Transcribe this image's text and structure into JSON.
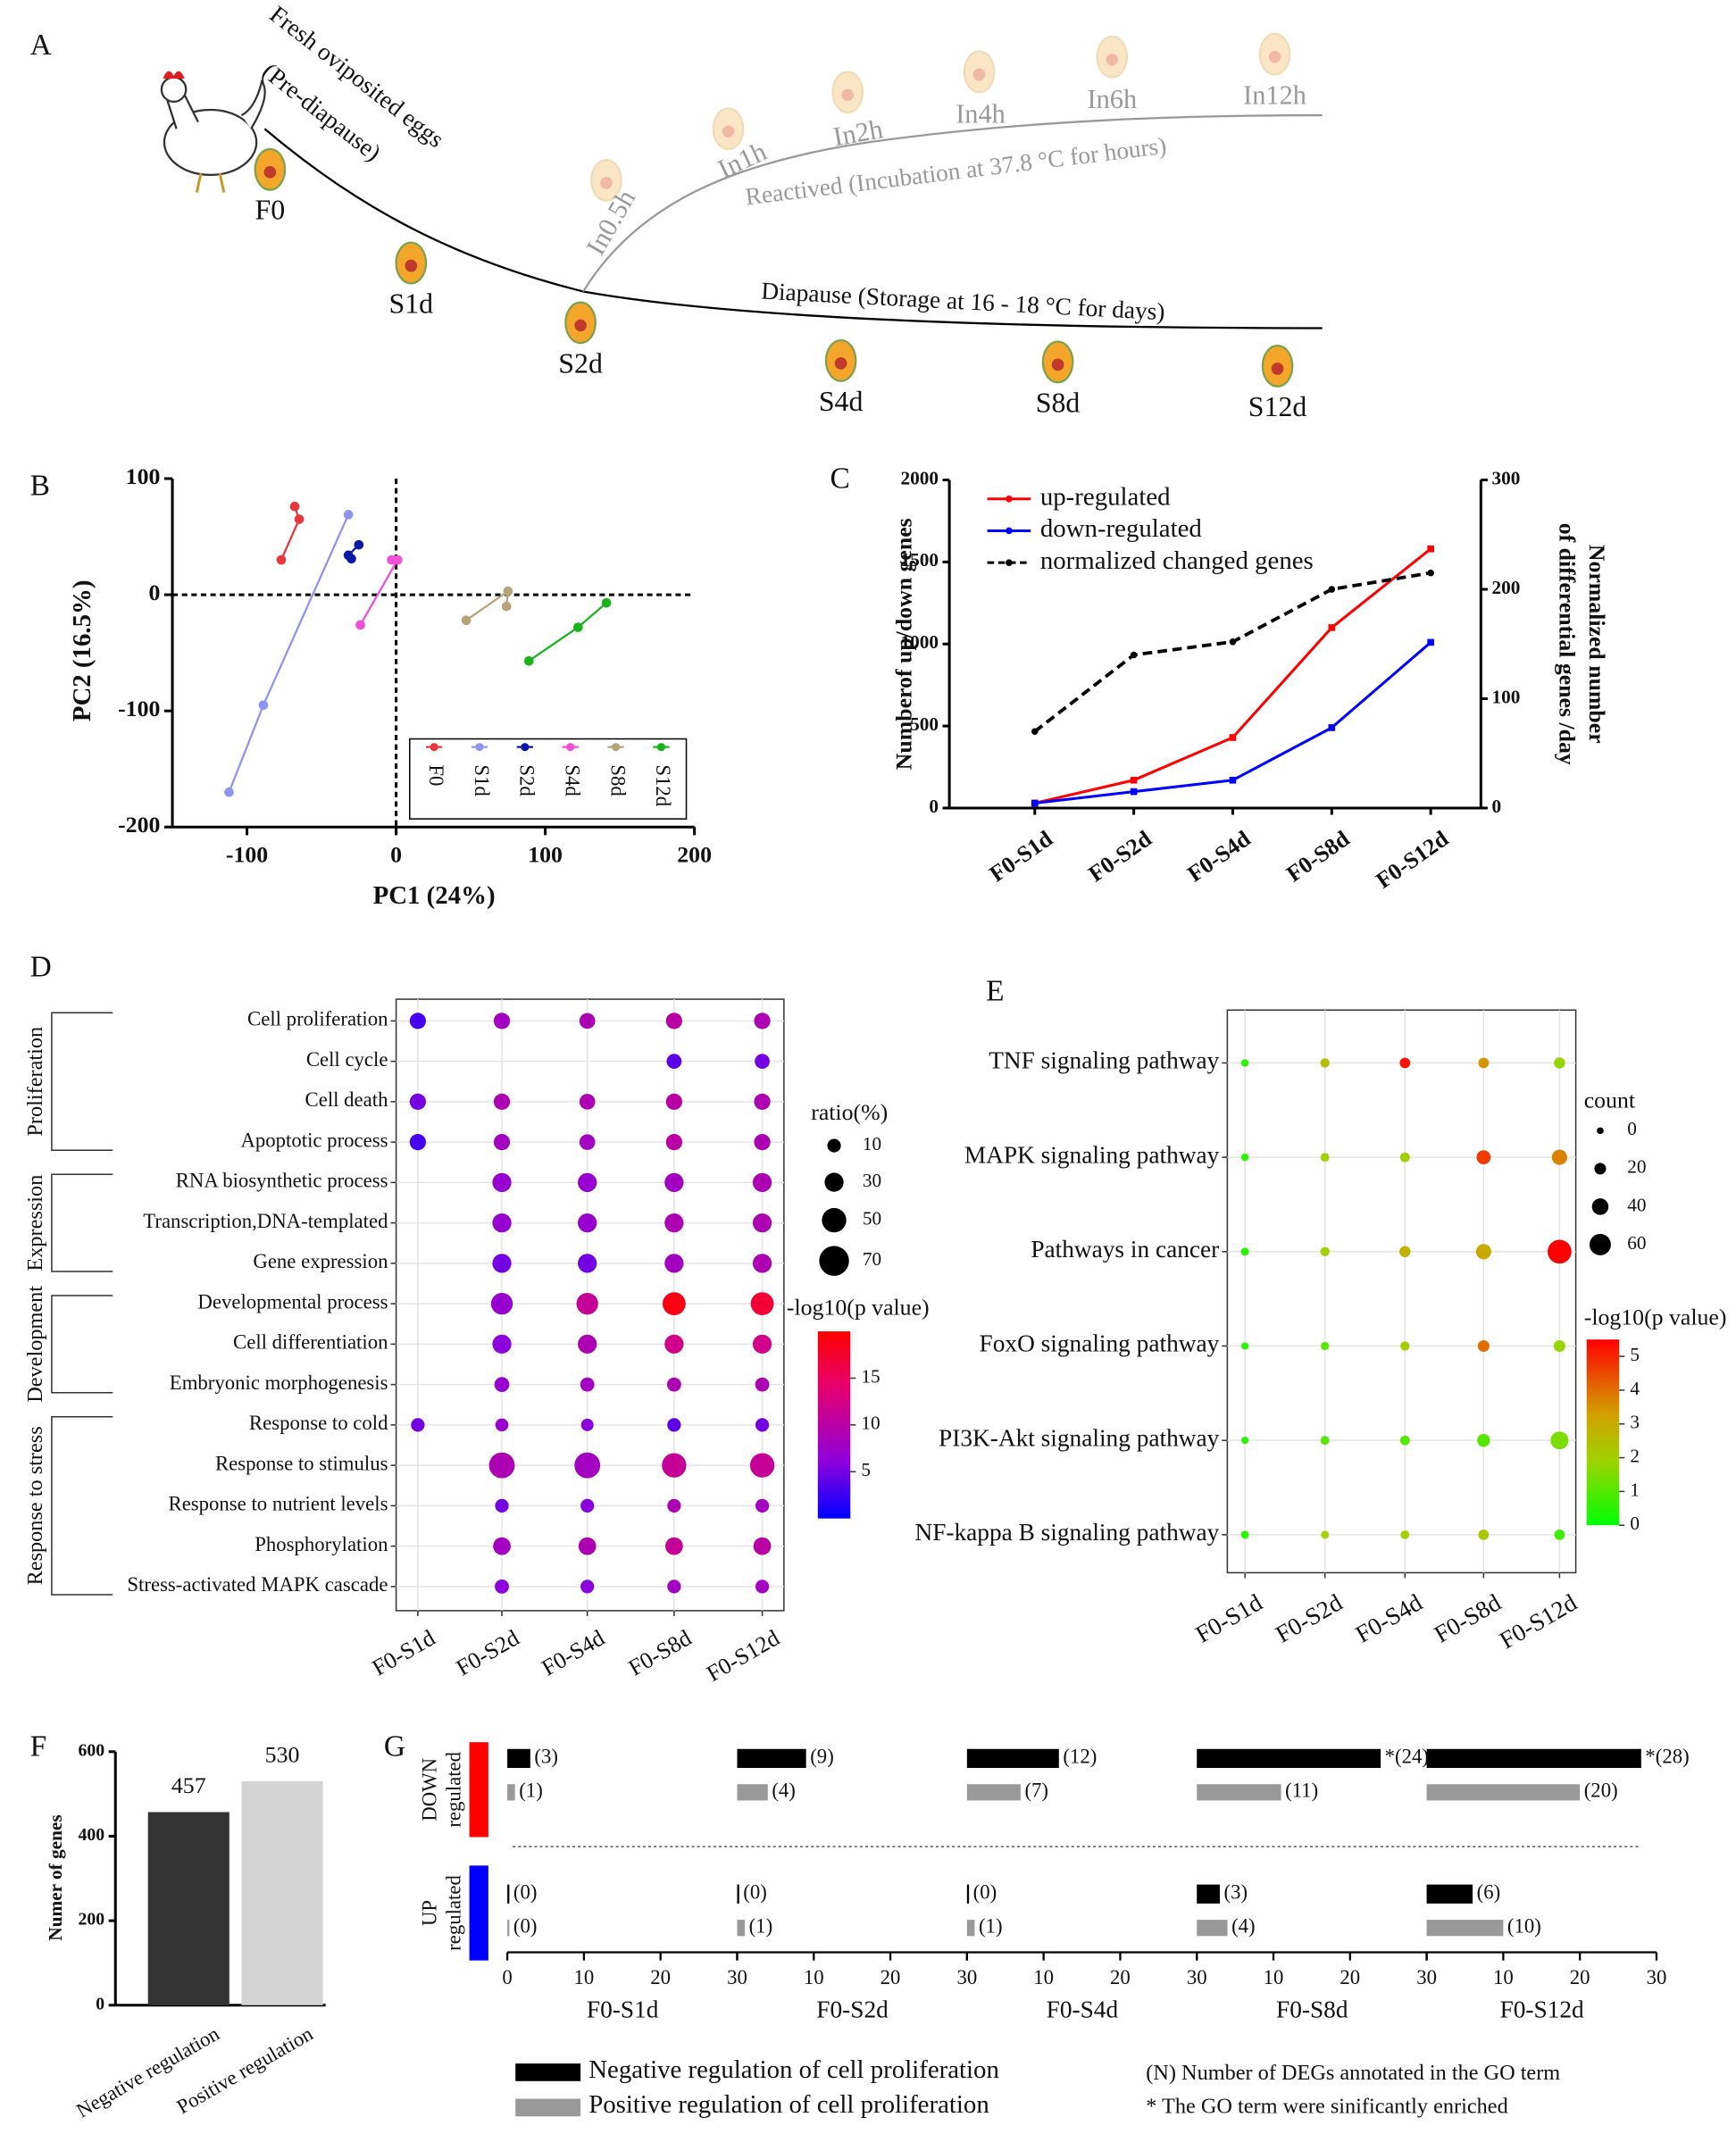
{
  "panel_labels": [
    "A",
    "B",
    "C",
    "D",
    "E",
    "F",
    "G"
  ],
  "diagram": {
    "stages": [
      "F0",
      "S1d",
      "S2d",
      "S4d",
      "S8d",
      "S12d"
    ],
    "reactivation": [
      "In0.5h",
      "In1h",
      "In2h",
      "In4h",
      "In6h",
      "In12h"
    ],
    "fresh": "Fresh oviposited eggs",
    "pre": "(Pre-diapause)",
    "reactivated_caption": "Reactived (Incubation at  37.8 °C for hours)",
    "diapause_caption": "Diapause (Storage at  16 - 18 °C for days)"
  },
  "chart_data": [
    {
      "type": "scatter",
      "xlabel": "PC1 (24%)",
      "ylabel": "PC2 (16.5%)",
      "xlim": [
        -150,
        200
      ],
      "ylim": [
        -200,
        100
      ],
      "xticks": [
        -100,
        0,
        100,
        200
      ],
      "yticks": [
        -200,
        -100,
        0,
        100
      ],
      "legend": "lower right",
      "series": [
        {
          "name": "F0",
          "color": "#e8383d",
          "x": [
            -68,
            -65,
            -77
          ],
          "y": [
            76,
            65,
            30
          ]
        },
        {
          "name": "S1d",
          "color": "#8f95ee",
          "x": [
            -32,
            -89,
            -112
          ],
          "y": [
            69,
            -95,
            -170
          ]
        },
        {
          "name": "S2d",
          "color": "#0a1aa6",
          "x": [
            -25,
            -32,
            -30
          ],
          "y": [
            43,
            34,
            31
          ]
        },
        {
          "name": "S4d",
          "color": "#f04fd6",
          "x": [
            -3,
            1,
            -24
          ],
          "y": [
            30,
            30,
            -26
          ]
        },
        {
          "name": "S8d",
          "color": "#b5a47a",
          "x": [
            47,
            75,
            74
          ],
          "y": [
            -22,
            3,
            -10
          ]
        },
        {
          "name": "S12d",
          "color": "#1db31d",
          "x": [
            141,
            122,
            89
          ],
          "y": [
            -7,
            -28,
            -57
          ]
        }
      ]
    },
    {
      "type": "line",
      "categories": [
        "F0-S1d",
        "F0-S2d",
        "F0-S4d",
        "F0-S8d",
        "F0-S12d"
      ],
      "ylabel": "Numberof up/down genes",
      "y2label": [
        "Normalized number",
        "of differential genes /day"
      ],
      "ylim": [
        0,
        2000
      ],
      "yticks": [
        0,
        500,
        1000,
        1500,
        2000
      ],
      "y2lim": [
        0,
        300
      ],
      "y2ticks": [
        0,
        100,
        200,
        300
      ],
      "legend": "upper left",
      "series": [
        {
          "name": "up-regulated",
          "color": "#ff0000",
          "values": [
            30,
            170,
            430,
            1100,
            1580
          ]
        },
        {
          "name": "down-regulated",
          "color": "#0000ff",
          "values": [
            30,
            100,
            170,
            490,
            1010
          ]
        },
        {
          "name": "normalized changed genes",
          "color": "#000000",
          "dash": true,
          "axis": "y2",
          "values": [
            70,
            140,
            152,
            200,
            215
          ]
        }
      ]
    },
    {
      "type": "dot",
      "size_label": "ratio(%)",
      "size_ticks": [
        10,
        30,
        50,
        70
      ],
      "color_label": "-log10(p value)",
      "clim": [
        0,
        20
      ],
      "cticks": [
        5,
        10,
        15
      ],
      "groups": [
        {
          "name": "Proliferation",
          "terms": [
            "Cell proliferation",
            "Cell cycle",
            "Cell death",
            "Apoptotic process"
          ]
        },
        {
          "name": "Expression",
          "terms": [
            "RNA biosynthetic process",
            "Transcription,DNA-templated",
            "Gene expression"
          ]
        },
        {
          "name": "Development",
          "terms": [
            "Developmental process",
            "Cell differentiation",
            "Embryonic morphogenesis"
          ]
        },
        {
          "name": "Response to stress",
          "terms": [
            "Response to cold",
            "Response to stimulus",
            "Response to nutrient levels",
            "Phosphorylation",
            "Stress-activated MAPK cascade"
          ]
        }
      ],
      "series": [
        {
          "name": "F0-S1d",
          "size": [
            20,
            null,
            20,
            20,
            null,
            null,
            null,
            null,
            null,
            null,
            10,
            null,
            null,
            null,
            null
          ],
          "color": [
            3,
            null,
            5,
            3,
            null,
            null,
            null,
            null,
            null,
            null,
            5,
            null,
            null,
            null,
            null
          ]
        },
        {
          "name": "F0-S2d",
          "size": [
            20,
            null,
            20,
            20,
            30,
            30,
            30,
            40,
            30,
            15,
            8,
            55,
            10,
            25,
            12
          ],
          "color": [
            8,
            null,
            9,
            8,
            7,
            7,
            5,
            7,
            6,
            7,
            7,
            9,
            5,
            8,
            6
          ]
        },
        {
          "name": "F0-S4d",
          "size": [
            18,
            null,
            18,
            18,
            30,
            30,
            30,
            40,
            30,
            12,
            6,
            55,
            10,
            25,
            10
          ],
          "color": [
            9,
            null,
            9,
            8,
            7,
            7,
            5,
            11,
            9,
            8,
            6,
            8,
            6,
            9,
            6
          ]
        },
        {
          "name": "F0-S8d",
          "size": [
            20,
            15,
            20,
            20,
            30,
            30,
            30,
            45,
            30,
            12,
            10,
            50,
            10,
            25,
            10
          ],
          "color": [
            10,
            4,
            10,
            10,
            8,
            9,
            8,
            19,
            12,
            9,
            4,
            11,
            9,
            11,
            8
          ]
        },
        {
          "name": "F0-S12d",
          "size": [
            20,
            15,
            20,
            20,
            30,
            30,
            30,
            45,
            30,
            12,
            10,
            50,
            10,
            25,
            10
          ],
          "color": [
            9,
            5,
            9,
            9,
            9,
            9,
            9,
            17,
            12,
            9,
            5,
            11,
            8,
            10,
            8
          ]
        }
      ]
    },
    {
      "type": "dot",
      "size_label": "count",
      "size_ticks": [
        0,
        20,
        40,
        60
      ],
      "color_label": "-log10(p value)",
      "clim": [
        0,
        5.5
      ],
      "cticks": [
        0,
        1,
        2,
        3,
        4,
        5
      ],
      "terms": [
        "TNF signaling pathway",
        "MAPK signaling pathway",
        "Pathways in cancer",
        "FoxO signaling pathway",
        "PI3K-Akt signaling pathway",
        "NF-kappa B signaling pathway"
      ],
      "series": [
        {
          "name": "F0-S1d",
          "size": [
            3,
            3,
            5,
            2,
            2,
            5
          ],
          "color": [
            0.5,
            0.5,
            0.5,
            0.5,
            0.5,
            0.5
          ]
        },
        {
          "name": "F0-S2d",
          "size": [
            10,
            8,
            10,
            6,
            8,
            5
          ],
          "color": [
            2.5,
            2,
            2,
            1,
            1,
            2
          ]
        },
        {
          "name": "F0-S4d",
          "size": [
            15,
            12,
            18,
            10,
            12,
            8
          ],
          "color": [
            5.3,
            2,
            2.8,
            2,
            1,
            2
          ]
        },
        {
          "name": "F0-S8d",
          "size": [
            15,
            30,
            35,
            20,
            25,
            15
          ],
          "color": [
            3.5,
            4.7,
            3,
            4,
            1,
            2.2
          ]
        },
        {
          "name": "F0-S12d",
          "size": [
            18,
            35,
            70,
            20,
            45,
            15
          ],
          "color": [
            1.8,
            3.7,
            5.5,
            1.8,
            1.5,
            0.8
          ]
        }
      ]
    },
    {
      "type": "bar",
      "categories": [
        "Negative regulation",
        "Positive regulation"
      ],
      "values": [
        457,
        530
      ],
      "colors": [
        "#333333",
        "#d4d4d4"
      ],
      "ylabel": "Numer of genes",
      "ylim": [
        0,
        600
      ],
      "yticks": [
        0,
        200,
        400,
        600
      ]
    },
    {
      "type": "hbar_panels",
      "categories": [
        "F0-S1d",
        "F0-S2d",
        "F0-S4d",
        "F0-S8d",
        "F0-S12d"
      ],
      "xlim": [
        0,
        30
      ],
      "xticks": [
        0,
        10,
        20,
        30
      ],
      "series": [
        {
          "name": "Negative regulation of cell proliferation",
          "color": "#000000"
        },
        {
          "name": "Positive regulation of cell proliferation",
          "color": "#999999"
        }
      ],
      "groups": [
        {
          "lines": [
            "DOWN",
            "regulated"
          ],
          "color": "#ff0000",
          "series": [
            {
              "values": [
                3,
                9,
                12,
                24,
                28
              ],
              "value_labels": [
                "(3)",
                "(9)",
                "(12)",
                "*(24)",
                "*(28)"
              ]
            },
            {
              "values": [
                1,
                4,
                7,
                11,
                20
              ],
              "value_labels": [
                "(1)",
                "(4)",
                "(7)",
                "(11)",
                "(20)"
              ]
            }
          ]
        },
        {
          "lines": [
            "UP",
            "regulated"
          ],
          "color": "#0000ff",
          "series": [
            {
              "values": [
                0,
                0,
                0,
                3,
                6
              ],
              "value_labels": [
                "(0)",
                "(0)",
                "(0)",
                "(3)",
                "(6)"
              ]
            },
            {
              "values": [
                0,
                1,
                1,
                4,
                10
              ],
              "value_labels": [
                "(0)",
                "(1)",
                "(1)",
                "(4)",
                "(10)"
              ]
            }
          ]
        }
      ],
      "notes": [
        "(N) Number of DEGs annotated in the GO term",
        "*  The GO term were sinificantly enriched"
      ]
    }
  ]
}
